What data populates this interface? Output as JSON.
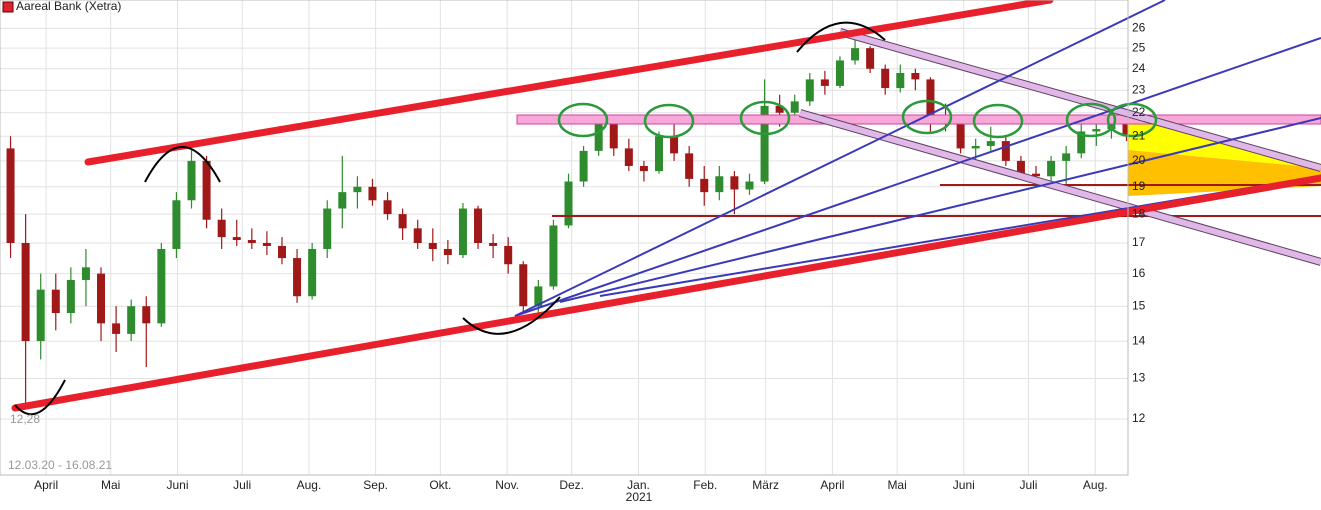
{
  "chart_data": {
    "type": "candlestick",
    "title": "Aareal Bank (Xetra)",
    "legend_color": "#e0202a",
    "period": "12.03.20 - 16.08.21",
    "low_label": "12,28",
    "year_label": "2021",
    "up_color": "#2e8b2e",
    "down_color": "#a01818",
    "log_scale": true,
    "grid": true,
    "ylim": [
      10.74,
      27.5
    ],
    "yticks": [
      12,
      13,
      14,
      15,
      16,
      17,
      18,
      19,
      20,
      21,
      22,
      23,
      24,
      25,
      26
    ],
    "xlim": [
      0,
      74.6
    ],
    "xticks": [
      {
        "value": 2.86,
        "label": "April"
      },
      {
        "value": 7.14,
        "label": "Mai"
      },
      {
        "value": 11.57,
        "label": "Juni"
      },
      {
        "value": 15.86,
        "label": "Juli"
      },
      {
        "value": 20.29,
        "label": "Aug."
      },
      {
        "value": 24.71,
        "label": "Sep."
      },
      {
        "value": 29,
        "label": "Okt."
      },
      {
        "value": 33.43,
        "label": "Nov."
      },
      {
        "value": 37.71,
        "label": "Dez."
      },
      {
        "value": 42.14,
        "label": "Jan."
      },
      {
        "value": 46.57,
        "label": "Feb."
      },
      {
        "value": 50.57,
        "label": "März"
      },
      {
        "value": 55,
        "label": "April"
      },
      {
        "value": 59.29,
        "label": "Mai"
      },
      {
        "value": 63.71,
        "label": "Juni"
      },
      {
        "value": 68,
        "label": "Juli"
      },
      {
        "value": 72.43,
        "label": "Aug."
      }
    ],
    "open": [
      20.5,
      17,
      14,
      15.5,
      14.8,
      15.8,
      16,
      14.5,
      14.2,
      15,
      14.5,
      16.8,
      18.5,
      20,
      17.8,
      17.2,
      17.1,
      17,
      16.9,
      16.5,
      15.3,
      16.8,
      18.2,
      18.8,
      19,
      18.5,
      18,
      17.5,
      17,
      16.8,
      16.6,
      18.2,
      17,
      16.9,
      16.3,
      15,
      15.6,
      17.6,
      19.2,
      20.4,
      21.5,
      20.5,
      19.8,
      19.6,
      21,
      20.3,
      19.3,
      18.8,
      19.4,
      18.9,
      19.2,
      22.3,
      22,
      22.5,
      23.5,
      23.2,
      24.4,
      25,
      24,
      23.1,
      23.8,
      23.5,
      21.8,
      21.5,
      20.5,
      20.6,
      20.8,
      20,
      19.5,
      19.4,
      20,
      20.3,
      21.2,
      21.3,
      21.6
    ],
    "high": [
      21,
      18,
      16,
      16,
      16.2,
      16.8,
      16.2,
      15,
      15.2,
      15.3,
      17,
      18.8,
      20.8,
      20.2,
      18.2,
      17.8,
      17.5,
      17.4,
      17.2,
      16.8,
      17,
      18.5,
      20.2,
      19.4,
      19.3,
      18.8,
      18.2,
      17.8,
      17.5,
      17.1,
      18.4,
      18.3,
      17.3,
      17.2,
      16.4,
      15.8,
      17.8,
      19.5,
      20.6,
      21.8,
      21.7,
      20.9,
      20,
      21.2,
      21.7,
      20.6,
      19.8,
      19.8,
      19.6,
      19.5,
      23.5,
      22.8,
      22.8,
      23.8,
      23.9,
      24.6,
      25.6,
      25.1,
      24.2,
      24.2,
      24,
      23.6,
      22.4,
      21.6,
      20.9,
      21.4,
      21,
      20.2,
      19.8,
      20.2,
      20.6,
      21.5,
      21.7,
      22.1,
      22
    ],
    "low": [
      16.5,
      12.3,
      13.5,
      14.3,
      14.5,
      15,
      14,
      13.7,
      14,
      13.3,
      14.4,
      16.5,
      18.2,
      17.5,
      16.8,
      16.9,
      16.8,
      16.6,
      16.3,
      15.1,
      15.2,
      16.5,
      17.5,
      18.2,
      18.3,
      17.8,
      17.1,
      16.8,
      16.4,
      16.3,
      16.5,
      16.8,
      16.5,
      16,
      14.8,
      14.8,
      15.5,
      17.5,
      19,
      20.2,
      20.2,
      19.6,
      19.2,
      19.5,
      20,
      19,
      18.3,
      18.5,
      18,
      18.7,
      19.1,
      21.4,
      21.8,
      22.3,
      22.8,
      23.1,
      24.2,
      23.8,
      22.8,
      22.9,
      23,
      21.2,
      21.2,
      20.3,
      20,
      20.4,
      19.8,
      19.3,
      19.1,
      19.2,
      19.1,
      20.1,
      20.6,
      20.9,
      20.8
    ],
    "close": [
      17,
      14,
      15.5,
      14.8,
      15.8,
      16.2,
      14.5,
      14.2,
      15,
      14.5,
      16.8,
      18.5,
      20,
      17.8,
      17.2,
      17.1,
      17,
      16.9,
      16.5,
      15.3,
      16.8,
      18.2,
      18.8,
      19,
      18.5,
      18,
      17.5,
      17,
      16.8,
      16.6,
      18.2,
      17,
      16.9,
      16.3,
      15,
      15.6,
      17.6,
      19.2,
      20.4,
      21.5,
      20.5,
      19.8,
      19.6,
      21,
      20.3,
      19.3,
      18.8,
      19.4,
      18.9,
      19.2,
      22.3,
      22,
      22.5,
      23.5,
      23.2,
      24.4,
      25,
      24,
      23.1,
      23.8,
      23.5,
      21.8,
      21.5,
      20.5,
      20.6,
      20.8,
      20,
      19.5,
      19.4,
      20,
      20.3,
      21.2,
      21.3,
      21.6,
      21
    ]
  }
}
